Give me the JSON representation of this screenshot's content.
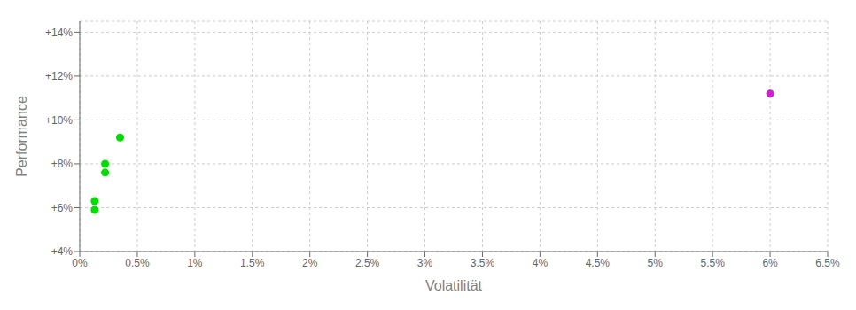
{
  "chart_data": {
    "type": "scatter",
    "xlabel": "Volatilität",
    "ylabel": "Performance",
    "xlim": [
      0,
      0.065
    ],
    "ylim": [
      0.04,
      0.145
    ],
    "xticks": [
      {
        "value": 0.0,
        "label": "0%"
      },
      {
        "value": 0.005,
        "label": "0.5%"
      },
      {
        "value": 0.01,
        "label": "1%"
      },
      {
        "value": 0.015,
        "label": "1.5%"
      },
      {
        "value": 0.02,
        "label": "2%"
      },
      {
        "value": 0.025,
        "label": "2.5%"
      },
      {
        "value": 0.03,
        "label": "3%"
      },
      {
        "value": 0.035,
        "label": "3.5%"
      },
      {
        "value": 0.04,
        "label": "4%"
      },
      {
        "value": 0.045,
        "label": "4.5%"
      },
      {
        "value": 0.05,
        "label": "5%"
      },
      {
        "value": 0.055,
        "label": "5.5%"
      },
      {
        "value": 0.06,
        "label": "6%"
      },
      {
        "value": 0.065,
        "label": "6.5%"
      }
    ],
    "yticks": [
      {
        "value": 0.04,
        "label": "+4%"
      },
      {
        "value": 0.06,
        "label": "+6%"
      },
      {
        "value": 0.08,
        "label": "+8%"
      },
      {
        "value": 0.1,
        "label": "+10%"
      },
      {
        "value": 0.12,
        "label": "+12%"
      },
      {
        "value": 0.14,
        "label": "+14%"
      }
    ],
    "grid": true,
    "series": [
      {
        "color": "#00dd00",
        "x": [
          0.0035,
          0.0022,
          0.0022,
          0.0013,
          0.0013
        ],
        "values": [
          0.092,
          0.08,
          0.076,
          0.063,
          0.059
        ]
      },
      {
        "color": "#cc22cc",
        "x": [
          0.06
        ],
        "values": [
          0.112
        ]
      }
    ]
  }
}
